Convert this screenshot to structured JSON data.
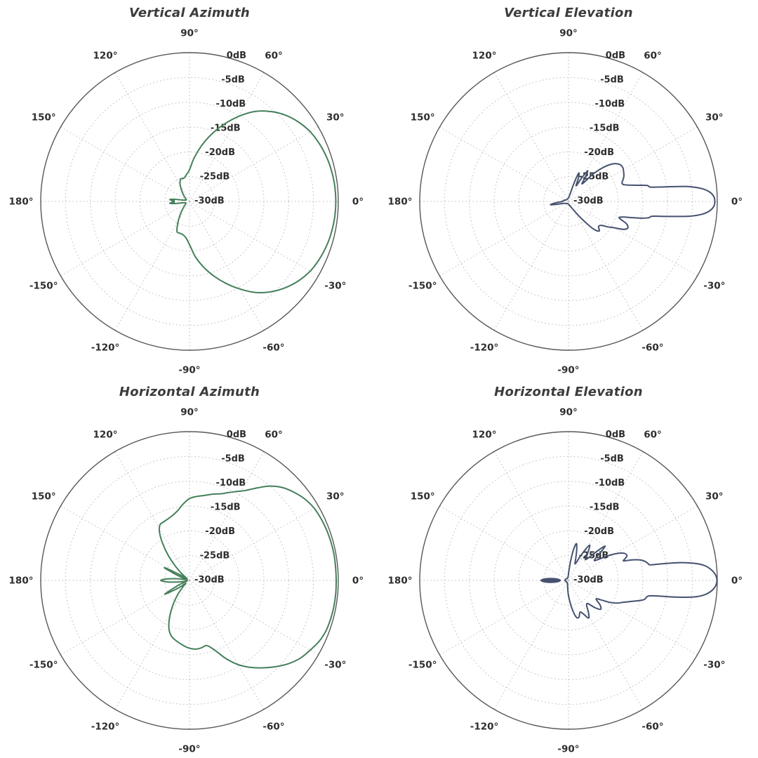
{
  "style": {
    "background": "#ffffff",
    "grid_color": "#bdbdbd",
    "outer_ring_color": "#575757",
    "label_color": "#2e2e2e",
    "title_color": "#3c3c3c",
    "azimuth_curve_color": "#44805a",
    "elevation_curve_color": "#45516f"
  },
  "polar_axis": {
    "r_max_db": 0,
    "r_min_db": -30,
    "ring_step_db": 5,
    "radial_labels": [
      {
        "db": 0,
        "label": "0dB"
      },
      {
        "db": -5,
        "label": "-5dB"
      },
      {
        "db": -10,
        "label": "-10dB"
      },
      {
        "db": -15,
        "label": "-15dB"
      },
      {
        "db": -20,
        "label": "-20dB"
      },
      {
        "db": -25,
        "label": "-25dB"
      },
      {
        "db": -30,
        "label": "-30dB"
      }
    ],
    "angle_labels": [
      {
        "deg": 0,
        "label": "0°"
      },
      {
        "deg": 30,
        "label": "30°"
      },
      {
        "deg": 60,
        "label": "60°"
      },
      {
        "deg": 90,
        "label": "90°"
      },
      {
        "deg": 120,
        "label": "120°"
      },
      {
        "deg": 150,
        "label": "150°"
      },
      {
        "deg": 180,
        "label": "180°"
      },
      {
        "deg": -150,
        "label": "-150°"
      },
      {
        "deg": -120,
        "label": "-120°"
      },
      {
        "deg": -90,
        "label": "-90°"
      },
      {
        "deg": -60,
        "label": "-60°"
      },
      {
        "deg": -30,
        "label": "-30°"
      }
    ]
  },
  "chart_data": [
    {
      "type": "polar-line",
      "title": "Vertical Azimuth",
      "color": "#44805a",
      "units": "angle_deg, gain_db",
      "points": [
        [
          -177,
          -26.9
        ],
        [
          -175,
          -26.0
        ],
        [
          -172,
          -26.9
        ],
        [
          -168,
          -28.7
        ],
        [
          -162,
          -29.1
        ],
        [
          -154,
          -29.2
        ],
        [
          -145,
          -29.0
        ],
        [
          -136,
          -28.4
        ],
        [
          -128,
          -27.3
        ],
        [
          -120,
          -25.5
        ],
        [
          -113,
          -23.5
        ],
        [
          -108,
          -23.3
        ],
        [
          -102,
          -23.2
        ],
        [
          -96,
          -22.7
        ],
        [
          -90,
          -21.3
        ],
        [
          -84,
          -18.8
        ],
        [
          -78,
          -16.5
        ],
        [
          -72,
          -14.2
        ],
        [
          -66,
          -11.9
        ],
        [
          -60,
          -9.6
        ],
        [
          -54,
          -7.3
        ],
        [
          -48,
          -5.5
        ],
        [
          -42,
          -4.0
        ],
        [
          -36,
          -2.8
        ],
        [
          -30,
          -1.9
        ],
        [
          -24,
          -1.35
        ],
        [
          -18,
          -0.95
        ],
        [
          -12,
          -0.7
        ],
        [
          -6,
          -0.55
        ],
        [
          0,
          -0.5
        ],
        [
          6,
          -0.55
        ],
        [
          12,
          -0.7
        ],
        [
          18,
          -0.95
        ],
        [
          24,
          -1.35
        ],
        [
          30,
          -1.9
        ],
        [
          36,
          -2.8
        ],
        [
          42,
          -4.0
        ],
        [
          48,
          -5.6
        ],
        [
          54,
          -7.6
        ],
        [
          60,
          -10.2
        ],
        [
          66,
          -13.0
        ],
        [
          72,
          -15.8
        ],
        [
          78,
          -18.6
        ],
        [
          84,
          -21.2
        ],
        [
          90,
          -23.6
        ],
        [
          96,
          -24.5
        ],
        [
          102,
          -25.1
        ],
        [
          107,
          -25.2
        ],
        [
          111,
          -25.1
        ],
        [
          115,
          -25.5
        ],
        [
          120,
          -26.3
        ],
        [
          128,
          -27.6
        ],
        [
          136,
          -28.5
        ],
        [
          145,
          -29.1
        ],
        [
          154,
          -29.3
        ],
        [
          162,
          -29.1
        ],
        [
          168,
          -28.7
        ],
        [
          172,
          -26.8
        ],
        [
          175,
          -26.0
        ],
        [
          177,
          -26.9
        ],
        [
          180,
          -26.5
        ]
      ]
    },
    {
      "type": "polar-line",
      "title": "Vertical Elevation",
      "color": "#45516f",
      "units": "angle_deg, gain_db",
      "points": [
        [
          -175,
          -27.8
        ],
        [
          -170,
          -26.3
        ],
        [
          -166,
          -27.6
        ],
        [
          -160,
          -28.8
        ],
        [
          -145,
          -29.3
        ],
        [
          -120,
          -29.5
        ],
        [
          -95,
          -29.5
        ],
        [
          -80,
          -29.3
        ],
        [
          -70,
          -29.0
        ],
        [
          -62,
          -28.4
        ],
        [
          -56,
          -27.0
        ],
        [
          -52,
          -25.2
        ],
        [
          -48,
          -22.6
        ],
        [
          -44,
          -21.4
        ],
        [
          -40,
          -22.1
        ],
        [
          -36,
          -21.8
        ],
        [
          -33,
          -20.6
        ],
        [
          -30,
          -19.4
        ],
        [
          -27,
          -17.6
        ],
        [
          -24,
          -16.9
        ],
        [
          -21,
          -17.5
        ],
        [
          -19,
          -18.8
        ],
        [
          -17.5,
          -19.3
        ],
        [
          -16,
          -18.6
        ],
        [
          -14.5,
          -17.0
        ],
        [
          -13,
          -15.0
        ],
        [
          -11.5,
          -13.5
        ],
        [
          -10,
          -12.8
        ],
        [
          -8.5,
          -9.5
        ],
        [
          -7,
          -5.5
        ],
        [
          -5.5,
          -3.0
        ],
        [
          -4,
          -1.6
        ],
        [
          -2,
          -0.7
        ],
        [
          0,
          -0.5
        ],
        [
          2,
          -0.7
        ],
        [
          4,
          -1.6
        ],
        [
          5.5,
          -3.0
        ],
        [
          7,
          -5.5
        ],
        [
          8,
          -8.5
        ],
        [
          9,
          -11.5
        ],
        [
          10,
          -13.3
        ],
        [
          11.5,
          -13.8
        ],
        [
          13,
          -15.5
        ],
        [
          15,
          -17.3
        ],
        [
          17,
          -18.4
        ],
        [
          19,
          -18.6
        ],
        [
          21,
          -18.3
        ],
        [
          24,
          -17.8
        ],
        [
          28,
          -17.4
        ],
        [
          32,
          -17.1
        ],
        [
          36,
          -17.3
        ],
        [
          40,
          -18.2
        ],
        [
          44,
          -20.0
        ],
        [
          48,
          -22.5
        ],
        [
          52,
          -25.5
        ],
        [
          55,
          -24.2
        ],
        [
          58,
          -22.7
        ],
        [
          61,
          -24.8
        ],
        [
          64,
          -26.5
        ],
        [
          67,
          -24.9
        ],
        [
          70,
          -23.9
        ],
        [
          73,
          -26.0
        ],
        [
          77,
          -28.2
        ],
        [
          85,
          -29.1
        ],
        [
          100,
          -29.4
        ],
        [
          125,
          -29.5
        ],
        [
          150,
          -29.4
        ],
        [
          165,
          -29.1
        ],
        [
          172,
          -28.9
        ],
        [
          180,
          -28.8
        ]
      ]
    },
    {
      "type": "polar-line",
      "title": "Horizontal Azimuth",
      "color": "#44805a",
      "units": "angle_deg, gain_db",
      "points": [
        [
          -176,
          -25.6
        ],
        [
          -172,
          -27.8
        ],
        [
          -167,
          -29.3
        ],
        [
          -162,
          -29.3
        ],
        [
          -157,
          -27.6
        ],
        [
          -151,
          -24.3
        ],
        [
          -146,
          -27.2
        ],
        [
          -142,
          -29.0
        ],
        [
          -136,
          -28.2
        ],
        [
          -130,
          -26.4
        ],
        [
          -124,
          -24.0
        ],
        [
          -118,
          -21.4
        ],
        [
          -113,
          -19.4
        ],
        [
          -108,
          -18.2
        ],
        [
          -103,
          -17.6
        ],
        [
          -97,
          -17.0
        ],
        [
          -91,
          -16.4
        ],
        [
          -85,
          -16.1
        ],
        [
          -80,
          -16.2
        ],
        [
          -75,
          -16.4
        ],
        [
          -70,
          -15.0
        ],
        [
          -65,
          -12.6
        ],
        [
          -60,
          -10.4
        ],
        [
          -55,
          -8.6
        ],
        [
          -50,
          -7.0
        ],
        [
          -45,
          -5.4
        ],
        [
          -40,
          -3.9
        ],
        [
          -35,
          -2.7
        ],
        [
          -30,
          -1.9
        ],
        [
          -25,
          -1.1
        ],
        [
          -20,
          -0.65
        ],
        [
          -15,
          -0.5
        ],
        [
          -10,
          -0.42
        ],
        [
          -5,
          -0.4
        ],
        [
          0,
          -0.42
        ],
        [
          5,
          -0.42
        ],
        [
          10,
          -0.4
        ],
        [
          15,
          -0.45
        ],
        [
          20,
          -0.55
        ],
        [
          25,
          -0.7
        ],
        [
          30,
          -0.95
        ],
        [
          35,
          -1.5
        ],
        [
          40,
          -2.4
        ],
        [
          45,
          -3.5
        ],
        [
          50,
          -5.2
        ],
        [
          55,
          -7.4
        ],
        [
          58,
          -8.6
        ],
        [
          62,
          -9.7
        ],
        [
          66,
          -10.6
        ],
        [
          70,
          -11.4
        ],
        [
          75,
          -12.0
        ],
        [
          80,
          -12.6
        ],
        [
          85,
          -13.0
        ],
        [
          90,
          -13.5
        ],
        [
          95,
          -14.6
        ],
        [
          100,
          -15.8
        ],
        [
          105,
          -16.5
        ],
        [
          110,
          -16.9
        ],
        [
          114,
          -17.1
        ],
        [
          118,
          -17.3
        ],
        [
          122,
          -18.6
        ],
        [
          126,
          -20.8
        ],
        [
          130,
          -23.2
        ],
        [
          134,
          -25.6
        ],
        [
          138,
          -27.6
        ],
        [
          142,
          -29.0
        ],
        [
          146,
          -29.3
        ],
        [
          150,
          -27.4
        ],
        [
          153,
          -24.3
        ],
        [
          156,
          -26.6
        ],
        [
          160,
          -28.9
        ],
        [
          164,
          -29.5
        ],
        [
          168,
          -29.3
        ],
        [
          172,
          -27.6
        ],
        [
          176,
          -25.5
        ],
        [
          180,
          -24.2
        ]
      ]
    },
    {
      "type": "polar-line",
      "title": "Horizontal Elevation",
      "color": "#45516f",
      "units": "angle_deg, gain_db",
      "back_lobe": {
        "angle_deg": 180,
        "db_center": -26.4,
        "db_half_extent": 2.0
      },
      "points": [
        [
          -174,
          -29.3
        ],
        [
          -160,
          -29.5
        ],
        [
          -140,
          -29.5
        ],
        [
          -120,
          -29.5
        ],
        [
          -105,
          -29.3
        ],
        [
          -97,
          -28.6
        ],
        [
          -91,
          -27.2
        ],
        [
          -86,
          -25.6
        ],
        [
          -82,
          -23.9
        ],
        [
          -78,
          -22.4
        ],
        [
          -74,
          -22.3
        ],
        [
          -70,
          -23.2
        ],
        [
          -66,
          -22.6
        ],
        [
          -62,
          -21.4
        ],
        [
          -58,
          -22.4
        ],
        [
          -54,
          -23.8
        ],
        [
          -50,
          -23.9
        ],
        [
          -46,
          -22.4
        ],
        [
          -42,
          -21.3
        ],
        [
          -38,
          -21.9
        ],
        [
          -34,
          -23.3
        ],
        [
          -31,
          -22.4
        ],
        [
          -28,
          -20.6
        ],
        [
          -25,
          -19.2
        ],
        [
          -22,
          -18.2
        ],
        [
          -19,
          -16.9
        ],
        [
          -16,
          -15.2
        ],
        [
          -14,
          -14.2
        ],
        [
          -12,
          -13.9
        ],
        [
          -10.8,
          -13.4
        ],
        [
          -9.8,
          -11.5
        ],
        [
          -8.8,
          -8.0
        ],
        [
          -7.5,
          -4.5
        ],
        [
          -6,
          -2.4
        ],
        [
          -4,
          -1.0
        ],
        [
          -2,
          -0.3
        ],
        [
          0,
          -0.05
        ],
        [
          2,
          -0.3
        ],
        [
          4,
          -1.0
        ],
        [
          6,
          -2.2
        ],
        [
          7.5,
          -4.0
        ],
        [
          9,
          -7.0
        ],
        [
          10,
          -10.5
        ],
        [
          10.8,
          -13.2
        ],
        [
          12,
          -13.6
        ],
        [
          14,
          -14.1
        ],
        [
          16,
          -15.0
        ],
        [
          18,
          -16.6
        ],
        [
          19.5,
          -18.2
        ],
        [
          21,
          -17.8
        ],
        [
          23,
          -17.2
        ],
        [
          26,
          -17.5
        ],
        [
          29,
          -18.8
        ],
        [
          32,
          -20.6
        ],
        [
          35,
          -22.6
        ],
        [
          38,
          -23.4
        ],
        [
          41,
          -21.6
        ],
        [
          43,
          -19.9
        ],
        [
          45,
          -21.2
        ],
        [
          48,
          -23.6
        ],
        [
          51,
          -24.6
        ],
        [
          54,
          -23.6
        ],
        [
          57,
          -22.4
        ],
        [
          59,
          -21.7
        ],
        [
          61,
          -22.6
        ],
        [
          64,
          -24.6
        ],
        [
          68,
          -26.4
        ],
        [
          72,
          -25.2
        ],
        [
          75,
          -23.6
        ],
        [
          78,
          -22.4
        ],
        [
          81,
          -23.9
        ],
        [
          84,
          -26.2
        ],
        [
          88,
          -28.2
        ],
        [
          95,
          -29.2
        ],
        [
          110,
          -29.5
        ],
        [
          135,
          -29.5
        ],
        [
          160,
          -29.4
        ],
        [
          172,
          -29.3
        ],
        [
          180,
          -29.3
        ]
      ]
    }
  ]
}
